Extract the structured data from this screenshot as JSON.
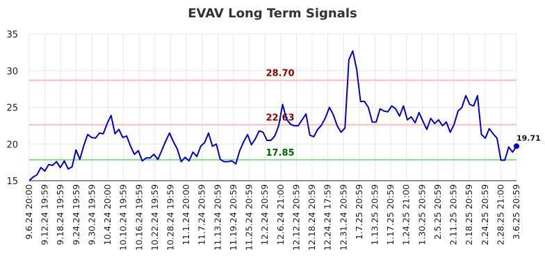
{
  "chart_data": {
    "type": "line",
    "title": "EVAV Long Term Signals",
    "xlabel": "",
    "ylabel": "",
    "ylim": [
      15,
      35
    ],
    "yticks": [
      15,
      20,
      25,
      30,
      35
    ],
    "grid": true,
    "x_tick_labels": [
      "9.6.24 20:00",
      "9.12.24 19:59",
      "9.18.24 19:59",
      "9.24.24 19:59",
      "9.30.24 19:59",
      "10.4.24 20:00",
      "10.10.24 19:59",
      "10.16.24 19:59",
      "10.22.24 19:59",
      "10.28.24 19:59",
      "11.1.24 20:00",
      "11.7.24 20:59",
      "11.13.24 20:59",
      "11.19.24 20:59",
      "11.25.24 20:59",
      "12.2.24 20:59",
      "12.6.24 21:00",
      "12.12.24 20:59",
      "12.18.24 20:59",
      "12.24.24 17:59",
      "12.31.24 20:59",
      "1.7.25 20:59",
      "1.13.25 20:59",
      "1.17.25 20:59",
      "1.24.25 21:00",
      "1.30.25 20:59",
      "2.5.25 20:59",
      "2.11.25 20:59",
      "2.18.25 20:59",
      "2.24.25 20:59",
      "2.28.25 21:00",
      "3.6.25 20:59"
    ],
    "series": [
      {
        "color": "#0000cc",
        "values": [
          15.0,
          15.5,
          15.8,
          16.8,
          16.3,
          17.2,
          17.1,
          17.6,
          16.8,
          17.7,
          16.6,
          16.9,
          19.2,
          17.9,
          19.8,
          21.3,
          20.9,
          20.8,
          21.5,
          21.4,
          22.8,
          23.9,
          21.4,
          22.0,
          20.9,
          21.1,
          19.7,
          18.6,
          19.1,
          17.7,
          18.1,
          18.1,
          18.6,
          17.9,
          19.1,
          20.4,
          21.5,
          20.3,
          19.3,
          17.6,
          18.2,
          17.7,
          18.9,
          18.3,
          19.7,
          20.2,
          21.5,
          19.7,
          20.0,
          17.9,
          17.6,
          17.6,
          17.7,
          17.3,
          19.1,
          20.3,
          21.3,
          19.9,
          20.7,
          21.8,
          21.6,
          20.5,
          20.5,
          21.1,
          22.5,
          25.4,
          23.4,
          22.7,
          22.5,
          22.5,
          23.3,
          24.1,
          21.2,
          21.0,
          22.0,
          22.6,
          23.6,
          25.0,
          24.0,
          22.5,
          21.6,
          22.2,
          31.5,
          32.7,
          30.2,
          25.8,
          25.8,
          25.0,
          23.0,
          23.0,
          24.8,
          24.5,
          24.4,
          25.2,
          24.8,
          23.8,
          25.2,
          23.3,
          23.7,
          22.9,
          24.3,
          23.1,
          22.0,
          23.5,
          22.8,
          23.3,
          22.5,
          23.0,
          21.6,
          22.7,
          24.5,
          25.0,
          26.6,
          25.4,
          25.2,
          26.6,
          21.3,
          20.8,
          22.1,
          21.4,
          20.8,
          17.8,
          17.8,
          19.6,
          18.9,
          19.71
        ]
      }
    ],
    "reference_lines": [
      {
        "value": 28.7,
        "label": "28.70",
        "line_color": "#ffbbbb",
        "label_color": "#8b0000"
      },
      {
        "value": 22.63,
        "label": "22.63",
        "line_color": "#ffbbbb",
        "label_color": "#8b0000"
      },
      {
        "value": 17.85,
        "label": "17.85",
        "line_color": "#88dd88",
        "label_color": "#006400"
      }
    ],
    "last_value_label": "19.71"
  }
}
